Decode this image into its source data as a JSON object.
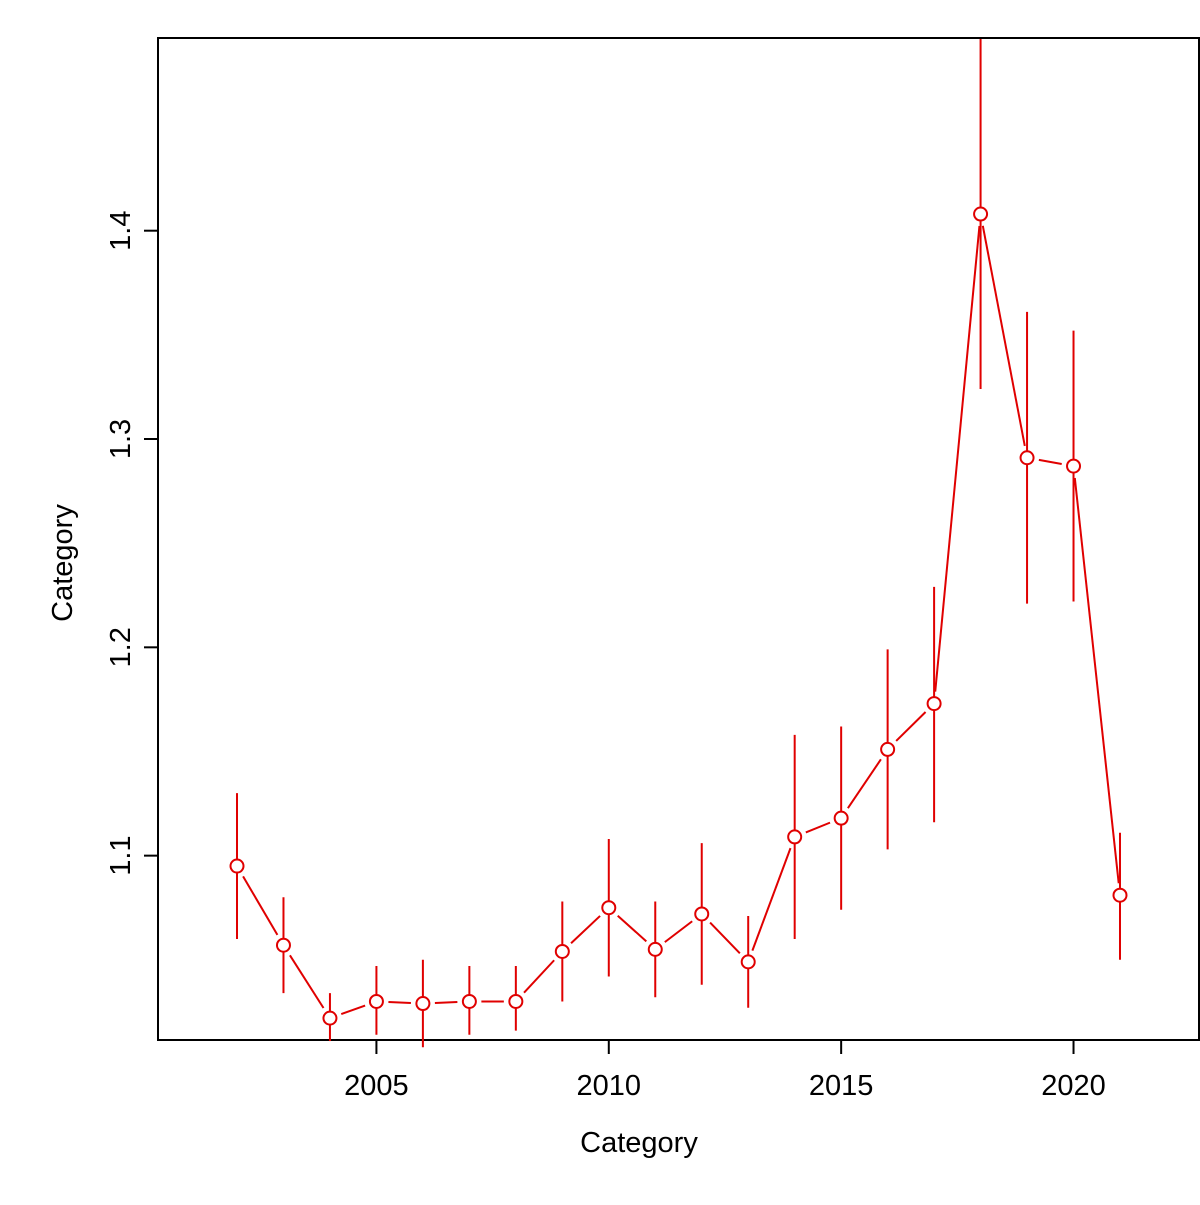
{
  "chart_data": {
    "type": "line",
    "xlabel": "Category",
    "ylabel": "Category",
    "xlim": [
      2000.3,
      2022.7
    ],
    "ylim": [
      1.0115,
      1.4925
    ],
    "x_ticks": [
      2005,
      2010,
      2015,
      2020
    ],
    "y_ticks": [
      1.1,
      1.2,
      1.3,
      1.4
    ],
    "x_tick_labels": [
      "2005",
      "2010",
      "2015",
      "2020"
    ],
    "y_tick_labels": [
      "1.1",
      "1.2",
      "1.3",
      "1.4"
    ],
    "grid": false,
    "legend": "none",
    "series": [
      {
        "color": "#e00000",
        "points": [
          {
            "x": 2002,
            "y": 1.095,
            "lower": 1.06,
            "upper": 1.13
          },
          {
            "x": 2003,
            "y": 1.057,
            "lower": 1.034,
            "upper": 1.08
          },
          {
            "x": 2004,
            "y": 1.022,
            "lower": 1.011,
            "upper": 1.034
          },
          {
            "x": 2005,
            "y": 1.03,
            "lower": 1.014,
            "upper": 1.047
          },
          {
            "x": 2006,
            "y": 1.029,
            "lower": 1.008,
            "upper": 1.05
          },
          {
            "x": 2007,
            "y": 1.03,
            "lower": 1.014,
            "upper": 1.047
          },
          {
            "x": 2008,
            "y": 1.03,
            "lower": 1.016,
            "upper": 1.047
          },
          {
            "x": 2009,
            "y": 1.054,
            "lower": 1.03,
            "upper": 1.078
          },
          {
            "x": 2010,
            "y": 1.075,
            "lower": 1.042,
            "upper": 1.108
          },
          {
            "x": 2011,
            "y": 1.055,
            "lower": 1.032,
            "upper": 1.078
          },
          {
            "x": 2012,
            "y": 1.072,
            "lower": 1.038,
            "upper": 1.106
          },
          {
            "x": 2013,
            "y": 1.049,
            "lower": 1.027,
            "upper": 1.071
          },
          {
            "x": 2014,
            "y": 1.109,
            "lower": 1.06,
            "upper": 1.158
          },
          {
            "x": 2015,
            "y": 1.118,
            "lower": 1.074,
            "upper": 1.162
          },
          {
            "x": 2016,
            "y": 1.151,
            "lower": 1.103,
            "upper": 1.199
          },
          {
            "x": 2017,
            "y": 1.173,
            "lower": 1.116,
            "upper": 1.229
          },
          {
            "x": 2018,
            "y": 1.408,
            "lower": 1.324,
            "upper": 1.492
          },
          {
            "x": 2019,
            "y": 1.291,
            "lower": 1.221,
            "upper": 1.361
          },
          {
            "x": 2020,
            "y": 1.287,
            "lower": 1.222,
            "upper": 1.352
          },
          {
            "x": 2021,
            "y": 1.081,
            "lower": 1.05,
            "upper": 1.111
          }
        ]
      }
    ]
  }
}
